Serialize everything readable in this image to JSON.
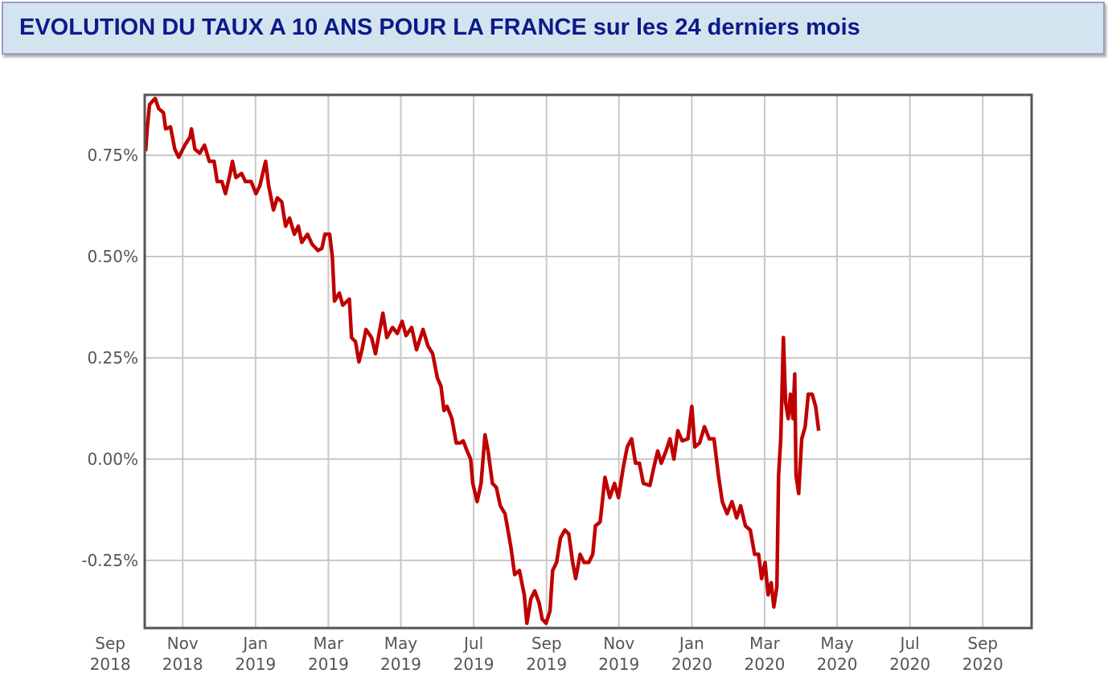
{
  "chart_data": {
    "type": "line",
    "title": "EVOLUTION DU TAUX A 10 ANS POUR LA FRANCE sur les 24 derniers mois",
    "color": "#c00000",
    "grid": true,
    "xlim": [
      2018.746,
      2020.779
    ],
    "ylim": [
      -0.417,
      0.899
    ],
    "xticks": [
      {
        "value": 2018.667,
        "label": "Sep 2018"
      },
      {
        "value": 2018.833,
        "label": "Nov 2018"
      },
      {
        "value": 2019,
        "label": "Jan 2019"
      },
      {
        "value": 2019.167,
        "label": "Mar 2019"
      },
      {
        "value": 2019.333,
        "label": "May 2019"
      },
      {
        "value": 2019.5,
        "label": "Jul 2019"
      },
      {
        "value": 2019.667,
        "label": "Sep 2019"
      },
      {
        "value": 2019.833,
        "label": "Nov 2019"
      },
      {
        "value": 2020,
        "label": "Jan 2020"
      },
      {
        "value": 2020.167,
        "label": "Mar 2020"
      },
      {
        "value": 2020.333,
        "label": "May 2020"
      },
      {
        "value": 2020.5,
        "label": "Jul 2020"
      },
      {
        "value": 2020.667,
        "label": "Sep 2020"
      }
    ],
    "yticks": [
      {
        "value": -0.25,
        "label": "-0.25%"
      },
      {
        "value": 0,
        "label": "0.00%"
      },
      {
        "value": 0.25,
        "label": "0.25%"
      },
      {
        "value": 0.5,
        "label": "0.50%"
      },
      {
        "value": 0.75,
        "label": "0.75%"
      }
    ],
    "x": [
      2018.748,
      2018.752,
      2018.757,
      2018.765,
      2018.77,
      2018.778,
      2018.789,
      2018.794,
      2018.805,
      2018.815,
      2018.824,
      2018.838,
      2018.85,
      2018.853,
      2018.861,
      2018.872,
      2018.883,
      2018.894,
      2018.905,
      2018.912,
      2018.923,
      2018.931,
      2018.942,
      2018.947,
      2018.955,
      2018.968,
      2018.977,
      2018.99,
      2019.001,
      2019.01,
      2019.023,
      2019.03,
      2019.041,
      2019.05,
      2019.06,
      2019.069,
      2019.078,
      2019.089,
      2019.098,
      2019.106,
      2019.119,
      2019.13,
      2019.143,
      2019.152,
      2019.159,
      2019.17,
      2019.176,
      2019.181,
      2019.192,
      2019.2,
      2019.215,
      2019.22,
      2019.229,
      2019.237,
      2019.244,
      2019.253,
      2019.266,
      2019.275,
      2019.285,
      2019.292,
      2019.301,
      2019.314,
      2019.325,
      2019.336,
      2019.345,
      2019.358,
      2019.369,
      2019.384,
      2019.395,
      2019.406,
      2019.417,
      2019.425,
      2019.432,
      2019.439,
      2019.45,
      2019.46,
      2019.469,
      2019.476,
      2019.485,
      2019.493,
      2019.498,
      2019.508,
      2019.517,
      2019.526,
      2019.533,
      2019.543,
      2019.552,
      2019.561,
      2019.572,
      2019.585,
      2019.594,
      2019.605,
      2019.616,
      2019.622,
      2019.631,
      2019.64,
      2019.65,
      2019.657,
      2019.666,
      2019.675,
      2019.681,
      2019.69,
      2019.699,
      2019.709,
      2019.718,
      2019.727,
      2019.734,
      2019.744,
      2019.753,
      2019.764,
      2019.773,
      2019.779,
      2019.79,
      2019.801,
      2019.812,
      2019.823,
      2019.832,
      2019.843,
      2019.852,
      2019.862,
      2019.871,
      2019.88,
      2019.889,
      2019.904,
      2019.913,
      2019.922,
      2019.93,
      2019.941,
      2019.95,
      2019.959,
      2019.968,
      2019.978,
      2019.991,
      2020.0,
      2020.007,
      2020.018,
      2020.029,
      2020.04,
      2020.051,
      2020.061,
      2020.07,
      2020.081,
      2020.092,
      2020.103,
      2020.112,
      2020.123,
      2020.134,
      2020.144,
      2020.153,
      2020.16,
      2020.168,
      2020.175,
      2020.182,
      2020.188,
      2020.195,
      2020.199,
      2020.204,
      2020.21,
      2020.215,
      2020.221,
      2020.226,
      2020.232,
      2020.236,
      2020.239,
      2020.245,
      2020.252,
      2020.26,
      2020.267,
      2020.276,
      2020.284,
      2020.291
    ],
    "values": [
      0.76,
      0.82,
      0.875,
      0.885,
      0.89,
      0.865,
      0.855,
      0.815,
      0.82,
      0.765,
      0.745,
      0.775,
      0.795,
      0.815,
      0.765,
      0.755,
      0.775,
      0.735,
      0.735,
      0.685,
      0.685,
      0.655,
      0.705,
      0.735,
      0.695,
      0.705,
      0.685,
      0.685,
      0.655,
      0.675,
      0.735,
      0.675,
      0.615,
      0.645,
      0.635,
      0.575,
      0.595,
      0.555,
      0.575,
      0.535,
      0.555,
      0.53,
      0.515,
      0.52,
      0.555,
      0.555,
      0.5,
      0.39,
      0.41,
      0.38,
      0.395,
      0.3,
      0.29,
      0.24,
      0.27,
      0.32,
      0.3,
      0.26,
      0.32,
      0.36,
      0.3,
      0.325,
      0.31,
      0.34,
      0.305,
      0.325,
      0.27,
      0.32,
      0.28,
      0.26,
      0.2,
      0.18,
      0.12,
      0.13,
      0.1,
      0.04,
      0.04,
      0.045,
      0.02,
      0.0,
      -0.06,
      -0.105,
      -0.06,
      0.06,
      0.02,
      -0.06,
      -0.07,
      -0.115,
      -0.135,
      -0.215,
      -0.285,
      -0.275,
      -0.335,
      -0.405,
      -0.345,
      -0.325,
      -0.355,
      -0.395,
      -0.405,
      -0.375,
      -0.275,
      -0.255,
      -0.195,
      -0.175,
      -0.185,
      -0.255,
      -0.295,
      -0.235,
      -0.255,
      -0.255,
      -0.235,
      -0.165,
      -0.155,
      -0.045,
      -0.095,
      -0.06,
      -0.095,
      -0.02,
      0.03,
      0.05,
      -0.01,
      -0.01,
      -0.06,
      -0.065,
      -0.02,
      0.02,
      -0.01,
      0.02,
      0.05,
      0.0,
      0.07,
      0.045,
      0.05,
      0.13,
      0.03,
      0.04,
      0.08,
      0.05,
      0.05,
      -0.04,
      -0.105,
      -0.135,
      -0.105,
      -0.145,
      -0.115,
      -0.165,
      -0.175,
      -0.235,
      -0.235,
      -0.295,
      -0.255,
      -0.335,
      -0.305,
      -0.365,
      -0.315,
      -0.04,
      0.05,
      0.3,
      0.14,
      0.1,
      0.16,
      0.1,
      0.21,
      -0.04,
      -0.085,
      0.05,
      0.08,
      0.16,
      0.16,
      0.13,
      0.07
    ]
  }
}
